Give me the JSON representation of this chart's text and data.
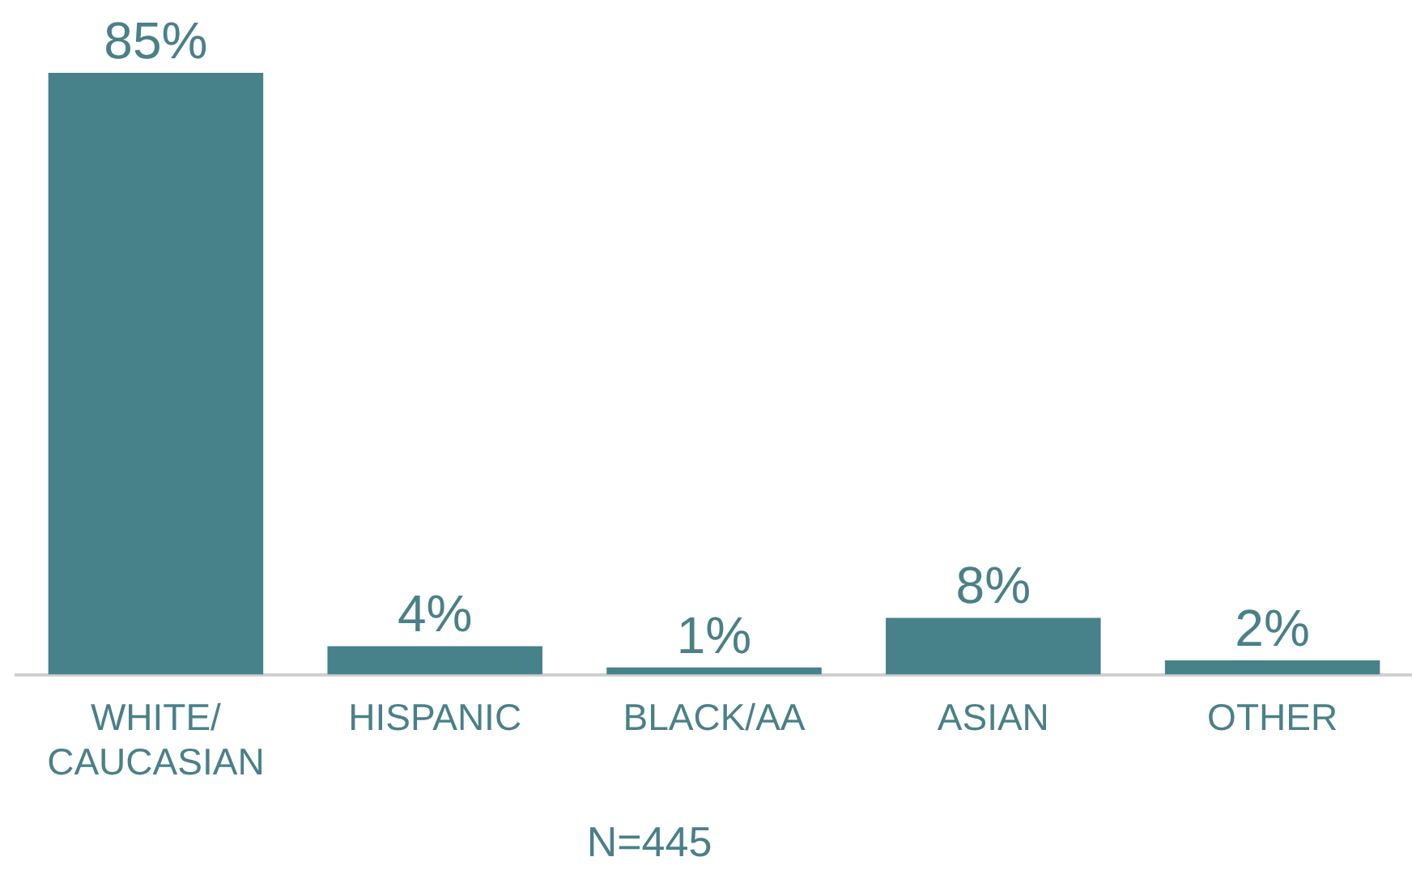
{
  "chart_data": {
    "type": "bar",
    "categories": [
      "WHITE/ CAUCASIAN",
      "HISPANIC",
      "BLACK/AA",
      "ASIAN",
      "OTHER"
    ],
    "values": [
      85,
      4,
      1,
      8,
      2
    ],
    "value_labels": [
      "85%",
      "4%",
      "1%",
      "8%",
      "2%"
    ],
    "color": "#47818a",
    "annotations": [
      "N=445"
    ]
  }
}
